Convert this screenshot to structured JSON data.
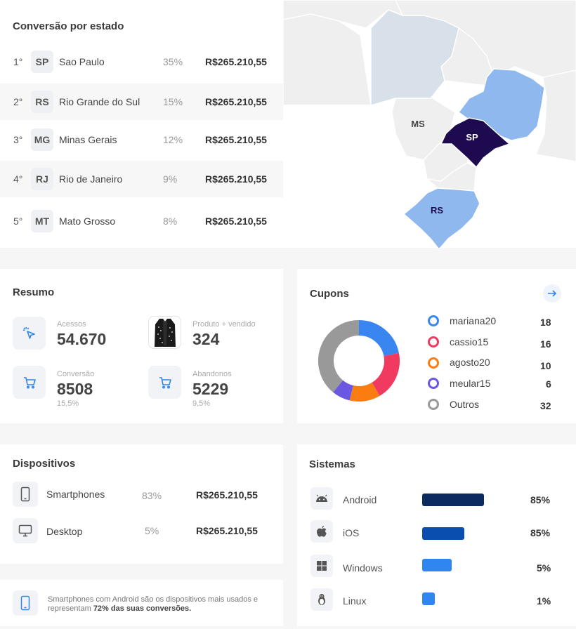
{
  "states": {
    "title": "Conversão por estado",
    "rows": [
      {
        "rank": "1°",
        "abbr": "SP",
        "name": "Sao Paulo",
        "pct": "35%",
        "value": "R$265.210,55"
      },
      {
        "rank": "2°",
        "abbr": "RS",
        "name": "Rio Grande do Sul",
        "pct": "15%",
        "value": "R$265.210,55"
      },
      {
        "rank": "3°",
        "abbr": "MG",
        "name": "Minas Gerais",
        "pct": "12%",
        "value": "R$265.210,55"
      },
      {
        "rank": "4°",
        "abbr": "RJ",
        "name": "Rio de Janeiro",
        "pct": "9%",
        "value": "R$265.210,55"
      },
      {
        "rank": "5°",
        "abbr": "MT",
        "name": "Mato Grosso",
        "pct": "8%",
        "value": "R$265.210,55"
      }
    ]
  },
  "map": {
    "labels": {
      "ms": "MS",
      "sp": "SP",
      "rs": "RS"
    },
    "colors": {
      "highlight": "#1d0a4f",
      "medium": "#8fb9ee",
      "light": "#d8e0ea",
      "base": "#efeff0"
    }
  },
  "resumo": {
    "title": "Resumo",
    "acessos": {
      "label": "Acessos",
      "value": "54.670"
    },
    "produto": {
      "label": "Produto + vendido",
      "value": "324"
    },
    "conversao": {
      "label": "Conversão",
      "value": "8508",
      "sub": "15,5%"
    },
    "abandonos": {
      "label": "Abandonos",
      "value": "5229",
      "sub": "9,5%"
    }
  },
  "cupons": {
    "title": "Cupons",
    "arrow_icon": "arrow-right-icon",
    "items": [
      {
        "name": "mariana20",
        "value": "18",
        "color": "#3a86f0"
      },
      {
        "name": "cassio15",
        "value": "16",
        "color": "#f03a5f"
      },
      {
        "name": "agosto20",
        "value": "10",
        "color": "#fb7d12"
      },
      {
        "name": "meular15",
        "value": "6",
        "color": "#6a58e2"
      },
      {
        "name": "Outros",
        "value": "32",
        "color": "#999999"
      }
    ]
  },
  "dispositivos": {
    "title": "Dispositivos",
    "items": [
      {
        "name": "Smartphones",
        "pct": "83%",
        "value": "R$265.210,55"
      },
      {
        "name": "Desktop",
        "pct": "5%",
        "value": "R$265.210,55"
      }
    ],
    "note_prefix": "Smartphones com Android são os dispositivos mais usados e representam ",
    "note_bold": "72% das suas conversões."
  },
  "sistemas": {
    "title": "Sistemas",
    "items": [
      {
        "name": "Android",
        "pct": "85%",
        "level": 0.85,
        "color": "#0b2a5e"
      },
      {
        "name": "iOS",
        "pct": "85%",
        "level": 0.85,
        "color": "#0a4fb0"
      },
      {
        "name": "Windows",
        "pct": "5%",
        "level": 0.05,
        "color": "#2e86ee"
      },
      {
        "name": "Linux",
        "pct": "1%",
        "level": 0.01,
        "color": "#2e86ee"
      }
    ]
  }
}
